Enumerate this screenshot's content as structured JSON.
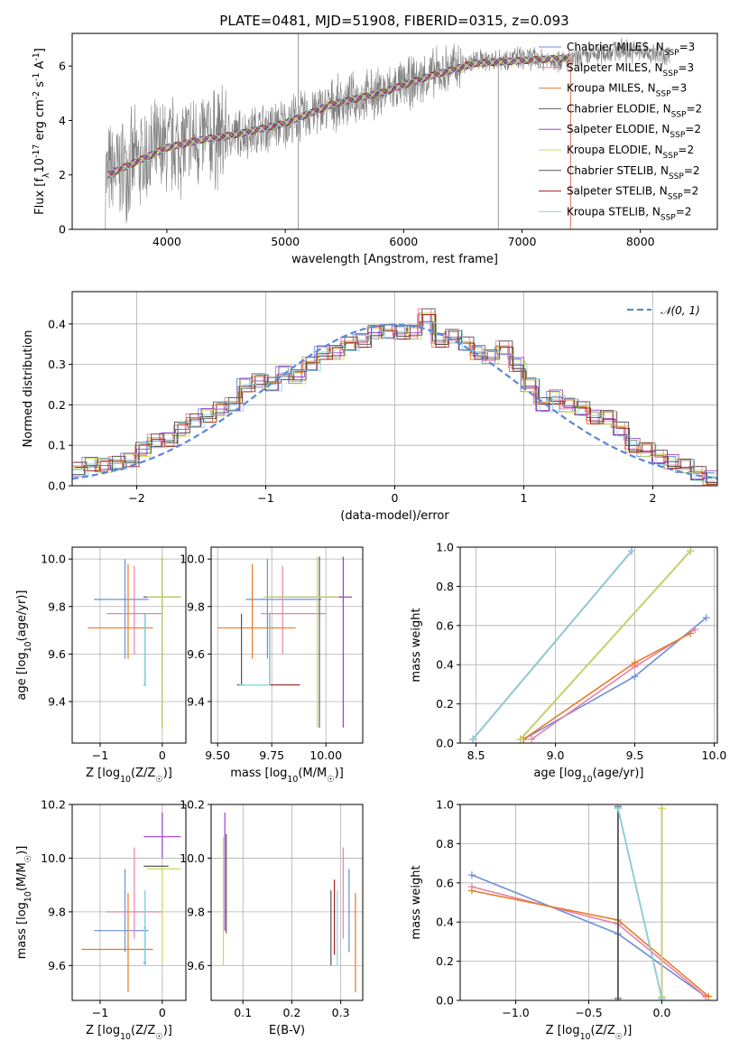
{
  "figure": {
    "title": "PLATE=0481, MJD=51908, FIBERID=0315, z=0.093"
  },
  "legend_labels": {
    "p1": [
      "Chabrier MILES, N",
      "Salpeter MILES, N",
      "Kroupa MILES, N",
      "Chabrier ELODIE, N",
      "Salpeter ELODIE, N",
      "Kroupa ELODIE, N",
      "Chabrier STELIB, N",
      "Salpeter STELIB, N",
      "Kroupa STELIB, N"
    ],
    "p1_sub": "SSP",
    "p1_vals": [
      "=3",
      "=3",
      "=3",
      "=2",
      "=2",
      "=2",
      "=2",
      "=2",
      "=2"
    ],
    "p2": "𝒩(0, 1)"
  },
  "colors": {
    "Chabrier MILES": "#6d8fd8",
    "Salpeter MILES": "#ea80a8",
    "Kroupa MILES": "#e87a28",
    "Chabrier ELODIE": "#5a5a5a",
    "Salpeter ELODIE": "#a040c8",
    "Kroupa ELODIE": "#ccdd55",
    "Chabrier STELIB": "#555555",
    "Salpeter STELIB": "#a02020",
    "Kroupa STELIB": "#88d8e0",
    "data": "#808080",
    "normal": "#5a88d8"
  },
  "chart_data": [
    {
      "id": "spectrum",
      "type": "line",
      "title": "PLATE=0481, MJD=51908, FIBERID=0315, z=0.093",
      "xlabel": "wavelength [Angstrom, rest frame]",
      "ylabel": "Flux [f$_\\lambda$10$^{-17}$ erg cm$^{-2}$ s$^{-1}$ A$^{-1}$]",
      "xlim": [
        3200,
        8650
      ],
      "ylim": [
        0,
        7.2
      ],
      "xticks": [
        4000,
        5000,
        6000,
        7000,
        8000
      ],
      "yticks": [
        0,
        2,
        4,
        6
      ],
      "grid": false,
      "legend_position": "top-right",
      "series": [
        {
          "name": "data",
          "x": [
            3500,
            3700,
            4000,
            4300,
            4600,
            5000,
            5400,
            5800,
            6200,
            6600,
            7000,
            7400,
            7800,
            8200
          ],
          "y": [
            2.0,
            2.4,
            3.0,
            3.3,
            3.5,
            3.9,
            4.6,
            5.0,
            5.6,
            6.2,
            6.3,
            6.2,
            6.6,
            6.4
          ]
        },
        {
          "name": "model",
          "x": [
            3500,
            3700,
            4000,
            4300,
            4600,
            5000,
            5400,
            5800,
            6200,
            6600,
            7000,
            7400
          ],
          "y": [
            2.0,
            2.4,
            3.0,
            3.3,
            3.5,
            3.9,
            4.6,
            5.0,
            5.6,
            6.1,
            6.2,
            6.3
          ]
        }
      ]
    },
    {
      "id": "residuals",
      "type": "histogram",
      "xlabel": "(data-model)/error",
      "ylabel": "Normed distribution",
      "xlim": [
        -2.5,
        2.5
      ],
      "ylim": [
        0,
        0.48
      ],
      "xticks": [
        -2,
        -1,
        0,
        1,
        2
      ],
      "yticks": [
        0.0,
        0.1,
        0.2,
        0.3,
        0.4
      ],
      "grid": true,
      "legend_position": "top-right",
      "bin_edges": [
        -2.5,
        -2.4,
        -2.3,
        -2.2,
        -2.1,
        -2.0,
        -1.9,
        -1.8,
        -1.7,
        -1.6,
        -1.5,
        -1.4,
        -1.3,
        -1.2,
        -1.1,
        -1.0,
        -0.9,
        -0.8,
        -0.7,
        -0.6,
        -0.5,
        -0.4,
        -0.3,
        -0.2,
        -0.1,
        0.0,
        0.1,
        0.2,
        0.3,
        0.4,
        0.5,
        0.6,
        0.7,
        0.8,
        0.9,
        1.0,
        1.1,
        1.2,
        1.3,
        1.4,
        1.5,
        1.6,
        1.7,
        1.8,
        1.9,
        2.0,
        2.1,
        2.2,
        2.3,
        2.4,
        2.5
      ],
      "values": [
        0.04,
        0.055,
        0.05,
        0.055,
        0.065,
        0.09,
        0.11,
        0.115,
        0.14,
        0.16,
        0.175,
        0.19,
        0.2,
        0.25,
        0.26,
        0.25,
        0.28,
        0.27,
        0.3,
        0.33,
        0.33,
        0.35,
        0.36,
        0.38,
        0.38,
        0.38,
        0.38,
        0.42,
        0.36,
        0.37,
        0.35,
        0.33,
        0.32,
        0.34,
        0.3,
        0.25,
        0.2,
        0.22,
        0.2,
        0.19,
        0.17,
        0.17,
        0.14,
        0.1,
        0.09,
        0.07,
        0.06,
        0.05,
        0.03,
        0.02
      ],
      "series": [
        {
          "name": "𝒩(0, 1)",
          "type": "gaussian",
          "mu": 0,
          "sigma": 1
        }
      ]
    },
    {
      "id": "age_vs_Z",
      "type": "errorbar",
      "xlabel": "Z [log$_{10}$(Z/Z$_\\odot$)]",
      "ylabel": "age  [log$_{10}$(age/yr)]",
      "xlim": [
        -1.45,
        0.38
      ],
      "ylim": [
        9.225,
        10.05
      ],
      "xticks": [
        -1,
        0
      ],
      "yticks": [
        9.4,
        9.6,
        9.8,
        10.0
      ],
      "grid": true,
      "points": [
        {
          "name": "Chabrier MILES",
          "x": -0.6,
          "y": 9.83,
          "xerr": [
            0.5,
            0.38
          ],
          "yerr": [
            0.25,
            0.17
          ]
        },
        {
          "name": "Salpeter MILES",
          "x": -0.45,
          "y": 9.77,
          "xerr": [
            0.45,
            0.45
          ],
          "yerr": [
            0.17,
            0.2
          ]
        },
        {
          "name": "Kroupa MILES",
          "x": -0.55,
          "y": 9.71,
          "xerr": [
            0.65,
            0.4
          ],
          "yerr": [
            0.13,
            0.27
          ]
        },
        {
          "name": "Chabrier ELODIE",
          "x": 0.0,
          "y": 9.84,
          "xerr": [
            0.3,
            0.3
          ],
          "yerr": [
            0.55,
            0.17
          ]
        },
        {
          "name": "Salpeter ELODIE",
          "x": 0.0,
          "y": 9.84,
          "xerr": [
            0.3,
            0.3
          ],
          "yerr": [
            0.55,
            0.17
          ]
        },
        {
          "name": "Kroupa ELODIE",
          "x": 0.0,
          "y": 9.84,
          "xerr": [
            0.25,
            0.3
          ],
          "yerr": [
            0.55,
            0.17
          ]
        },
        {
          "name": "Chabrier STELIB",
          "x": -0.28,
          "y": 9.47,
          "xerr": [
            0.02,
            0.02
          ],
          "yerr": [
            0.0,
            0.3
          ]
        },
        {
          "name": "Salpeter STELIB",
          "x": -0.28,
          "y": 9.47,
          "xerr": [
            0.02,
            0.02
          ],
          "yerr": [
            0.0,
            0.3
          ]
        },
        {
          "name": "Kroupa STELIB",
          "x": -0.28,
          "y": 9.47,
          "xerr": [
            0.02,
            0.02
          ],
          "yerr": [
            0.0,
            0.3
          ]
        }
      ]
    },
    {
      "id": "age_vs_mass",
      "type": "errorbar",
      "xlabel": "mass [log$_{10}$(M/M$_\\odot$)]",
      "ylabel": "",
      "xlim": [
        9.47,
        10.17
      ],
      "ylim": [
        9.225,
        10.05
      ],
      "xticks": [
        9.5,
        9.75,
        10.0
      ],
      "yticks": [
        9.4,
        9.6,
        9.8,
        10.0
      ],
      "grid": true,
      "points": [
        {
          "name": "Chabrier MILES",
          "x": 9.73,
          "y": 9.83,
          "xerr": [
            0.1,
            0.25
          ],
          "yerr": [
            0.25,
            0.17
          ]
        },
        {
          "name": "Salpeter MILES",
          "x": 9.8,
          "y": 9.77,
          "xerr": [
            0.1,
            0.2
          ],
          "yerr": [
            0.17,
            0.2
          ]
        },
        {
          "name": "Kroupa MILES",
          "x": 9.66,
          "y": 9.71,
          "xerr": [
            0.16,
            0.2
          ],
          "yerr": [
            0.13,
            0.27
          ]
        },
        {
          "name": "Chabrier ELODIE",
          "x": 9.97,
          "y": 9.84,
          "xerr": [
            0.25,
            0.1
          ],
          "yerr": [
            0.55,
            0.17
          ]
        },
        {
          "name": "Salpeter ELODIE",
          "x": 10.08,
          "y": 9.84,
          "xerr": [
            0.3,
            0.04
          ],
          "yerr": [
            0.55,
            0.17
          ]
        },
        {
          "name": "Kroupa ELODIE",
          "x": 9.96,
          "y": 9.84,
          "xerr": [
            0.25,
            0.1
          ],
          "yerr": [
            0.55,
            0.17
          ]
        },
        {
          "name": "Chabrier STELIB",
          "x": 9.61,
          "y": 9.47,
          "xerr": [
            0.02,
            0.02
          ],
          "yerr": [
            0.0,
            0.3
          ]
        },
        {
          "name": "Salpeter STELIB",
          "x": 9.74,
          "y": 9.47,
          "xerr": [
            0.14,
            0.14
          ],
          "yerr": [
            0.0,
            0.3
          ]
        },
        {
          "name": "Kroupa STELIB",
          "x": 9.74,
          "y": 9.47,
          "xerr": [
            0.14,
            0.0
          ],
          "yerr": [
            0.0,
            0.3
          ]
        }
      ]
    },
    {
      "id": "weight_vs_age",
      "type": "line",
      "xlabel": "age  [log$_{10}$(age/yr)]",
      "ylabel": "mass weight",
      "xlim": [
        8.4,
        10.02
      ],
      "ylim": [
        0.0,
        1.0
      ],
      "xticks": [
        8.5,
        9.0,
        9.5,
        10.0
      ],
      "yticks": [
        0.0,
        0.2,
        0.4,
        0.6,
        0.8,
        1.0
      ],
      "grid": true,
      "series": [
        {
          "name": "Chabrier MILES",
          "x": [
            8.8,
            9.5,
            9.95
          ],
          "y": [
            0.02,
            0.34,
            0.64
          ]
        },
        {
          "name": "Salpeter MILES",
          "x": [
            8.85,
            9.5,
            9.88
          ],
          "y": [
            0.02,
            0.39,
            0.58
          ]
        },
        {
          "name": "Kroupa MILES",
          "x": [
            8.8,
            9.5,
            9.85
          ],
          "y": [
            0.02,
            0.41,
            0.56
          ]
        },
        {
          "name": "Chabrier ELODIE",
          "x": [
            8.78,
            9.85
          ],
          "y": [
            0.02,
            0.98
          ]
        },
        {
          "name": "Salpeter ELODIE",
          "x": [
            8.78,
            9.85
          ],
          "y": [
            0.02,
            0.98
          ]
        },
        {
          "name": "Kroupa ELODIE",
          "x": [
            8.78,
            9.85
          ],
          "y": [
            0.02,
            0.98
          ]
        },
        {
          "name": "Chabrier STELIB",
          "x": [
            8.48,
            9.48
          ],
          "y": [
            0.02,
            0.98
          ]
        },
        {
          "name": "Salpeter STELIB",
          "x": [
            8.48,
            9.48
          ],
          "y": [
            0.02,
            0.98
          ]
        },
        {
          "name": "Kroupa STELIB",
          "x": [
            8.48,
            9.48
          ],
          "y": [
            0.02,
            0.98
          ]
        }
      ]
    },
    {
      "id": "mass_vs_Z",
      "type": "errorbar",
      "xlabel": "Z [log$_{10}$(Z/Z$_\\odot$)]",
      "ylabel": "mass [log$_{10}$(M/M$_\\odot$)]",
      "xlim": [
        -1.45,
        0.38
      ],
      "ylim": [
        9.47,
        10.2
      ],
      "xticks": [
        -1,
        0
      ],
      "yticks": [
        9.6,
        9.8,
        10.0,
        10.2
      ],
      "grid": true,
      "points": [
        {
          "name": "Chabrier MILES",
          "x": -0.6,
          "y": 9.73,
          "xerr": [
            0.5,
            0.38
          ],
          "yerr": [
            0.08,
            0.23
          ]
        },
        {
          "name": "Salpeter MILES",
          "x": -0.45,
          "y": 9.8,
          "xerr": [
            0.45,
            0.45
          ],
          "yerr": [
            0.1,
            0.24
          ]
        },
        {
          "name": "Kroupa MILES",
          "x": -0.55,
          "y": 9.66,
          "xerr": [
            0.75,
            0.4
          ],
          "yerr": [
            0.16,
            0.21
          ]
        },
        {
          "name": "Chabrier ELODIE",
          "x": 0.0,
          "y": 9.97,
          "xerr": [
            0.3,
            0.1
          ],
          "yerr": [
            0.0,
            0.0
          ]
        },
        {
          "name": "Salpeter ELODIE",
          "x": 0.0,
          "y": 10.08,
          "xerr": [
            0.3,
            0.3
          ],
          "yerr": [
            0.08,
            0.09
          ]
        },
        {
          "name": "Kroupa ELODIE",
          "x": 0.0,
          "y": 9.96,
          "xerr": [
            0.25,
            0.3
          ],
          "yerr": [
            0.35,
            0.0
          ]
        },
        {
          "name": "Chabrier STELIB",
          "x": -0.28,
          "y": 9.61,
          "xerr": [
            0.02,
            0.02
          ],
          "yerr": [
            0.0,
            0.12
          ]
        },
        {
          "name": "Salpeter STELIB",
          "x": -0.28,
          "y": 9.74,
          "xerr": [
            0.02,
            0.02
          ],
          "yerr": [
            0.14,
            0.14
          ]
        },
        {
          "name": "Kroupa STELIB",
          "x": -0.28,
          "y": 9.74,
          "xerr": [
            0.02,
            0.02
          ],
          "yerr": [
            0.14,
            0.14
          ]
        }
      ]
    },
    {
      "id": "mass_vs_EBV",
      "type": "errorbar",
      "xlabel": "E(B-V)",
      "ylabel": "",
      "xlim": [
        0.035,
        0.345
      ],
      "ylim": [
        9.47,
        10.2
      ],
      "xticks": [
        0.1,
        0.2,
        0.3
      ],
      "yticks": [
        9.6,
        9.8,
        10.0,
        10.2
      ],
      "grid": true,
      "points": [
        {
          "name": "Chabrier MILES",
          "x": 0.317,
          "y": 9.73,
          "xerr": [
            0.0,
            0.0
          ],
          "yerr": [
            0.08,
            0.23
          ]
        },
        {
          "name": "Salpeter MILES",
          "x": 0.305,
          "y": 9.8,
          "xerr": [
            0.0,
            0.0
          ],
          "yerr": [
            0.1,
            0.24
          ]
        },
        {
          "name": "Kroupa MILES",
          "x": 0.33,
          "y": 9.66,
          "xerr": [
            0.0,
            0.0
          ],
          "yerr": [
            0.16,
            0.21
          ]
        },
        {
          "name": "Chabrier ELODIE",
          "x": 0.066,
          "y": 9.97,
          "xerr": [
            0.0,
            0.0
          ],
          "yerr": [
            0.25,
            0.12
          ]
        },
        {
          "name": "Salpeter ELODIE",
          "x": 0.063,
          "y": 10.08,
          "xerr": [
            0.0,
            0.0
          ],
          "yerr": [
            0.35,
            0.09
          ]
        },
        {
          "name": "Kroupa ELODIE",
          "x": 0.06,
          "y": 9.96,
          "xerr": [
            0.0,
            0.0
          ],
          "yerr": [
            0.36,
            0.12
          ]
        },
        {
          "name": "Chabrier STELIB",
          "x": 0.28,
          "y": 9.74,
          "xerr": [
            0.0,
            0.0
          ],
          "yerr": [
            0.14,
            0.14
          ]
        },
        {
          "name": "Salpeter STELIB",
          "x": 0.287,
          "y": 9.8,
          "xerr": [
            0.0,
            0.0
          ],
          "yerr": [
            0.16,
            0.12
          ]
        },
        {
          "name": "Kroupa STELIB",
          "x": 0.293,
          "y": 9.74,
          "xerr": [
            0.0,
            0.0
          ],
          "yerr": [
            0.14,
            0.14
          ]
        }
      ]
    },
    {
      "id": "weight_vs_Z",
      "type": "line",
      "xlabel": "Z [log$_{10}$(Z/Z$_\\odot$)]",
      "ylabel": "mass weight",
      "xlim": [
        -1.38,
        0.38
      ],
      "ylim": [
        0.0,
        1.0
      ],
      "xticks": [
        -1.0,
        -0.5,
        0.0
      ],
      "yticks": [
        0.0,
        0.2,
        0.4,
        0.6,
        0.8,
        1.0
      ],
      "grid": true,
      "series": [
        {
          "name": "Chabrier MILES",
          "x": [
            -1.3,
            -0.3,
            0.3
          ],
          "y": [
            0.64,
            0.34,
            0.02
          ]
        },
        {
          "name": "Salpeter MILES",
          "x": [
            -1.3,
            -0.3,
            0.3
          ],
          "y": [
            0.58,
            0.39,
            0.02
          ]
        },
        {
          "name": "Kroupa MILES",
          "x": [
            -1.3,
            -0.3,
            0.32
          ],
          "y": [
            0.56,
            0.41,
            0.02
          ]
        },
        {
          "name": "Chabrier ELODIE",
          "x": [
            -0.3,
            -0.3
          ],
          "y": [
            0.0,
            0.98
          ]
        },
        {
          "name": "Salpeter ELODIE",
          "x": [
            0.0,
            0.0
          ],
          "y": [
            0.02,
            0.98
          ]
        },
        {
          "name": "Kroupa ELODIE",
          "x": [
            0.0,
            0.0
          ],
          "y": [
            0.02,
            0.98
          ]
        },
        {
          "name": "Chabrier STELIB",
          "x": [
            -0.3,
            -0.3
          ],
          "y": [
            0.01,
            0.99
          ]
        },
        {
          "name": "Salpeter STELIB",
          "x": [
            -0.3,
            0.0
          ],
          "y": [
            0.98,
            0.01
          ]
        },
        {
          "name": "Kroupa STELIB",
          "x": [
            -0.3,
            0.0
          ],
          "y": [
            0.98,
            0.01
          ]
        }
      ]
    }
  ]
}
